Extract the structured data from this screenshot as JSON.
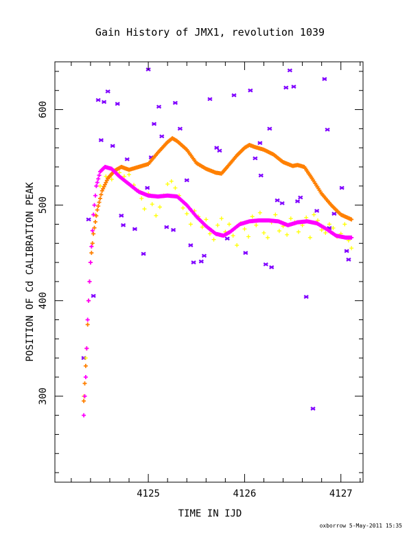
{
  "chart_data": {
    "type": "scatter",
    "title": "Gain History of JMX1, revolution 1039",
    "xlabel": "TIME IN IJD",
    "ylabel": "POSITION OF Cd CALIBRATION PEAK",
    "xlim": [
      4124.03,
      4127.23
    ],
    "ylim": [
      210,
      650
    ],
    "x_ticks": [
      4125,
      4126,
      4127
    ],
    "x_tick_labels": [
      "4125",
      "4126",
      "4127"
    ],
    "y_ticks": [
      300,
      400,
      500,
      600
    ],
    "y_tick_labels": [
      "300",
      "400",
      "500",
      "600"
    ],
    "grid": false,
    "footer_note": "oxborrow  5-May-2011 15:35",
    "colors": {
      "purple_markers": "#8000ff",
      "yellow_markers": "#ffff00",
      "orange_curve": "#ff8000",
      "magenta_curve": "#ff00ff",
      "axes": "#000000"
    },
    "series": [
      {
        "marker": "x",
        "color": "#8000ff",
        "points": [
          [
            4124.33,
            340
          ],
          [
            4124.38,
            485
          ],
          [
            4124.43,
            405
          ],
          [
            4124.48,
            610
          ],
          [
            4124.51,
            568
          ],
          [
            4124.58,
            619
          ],
          [
            4124.63,
            562
          ],
          [
            4124.68,
            606
          ],
          [
            4124.72,
            489
          ],
          [
            4124.74,
            479
          ],
          [
            4124.78,
            548
          ],
          [
            4124.86,
            475
          ],
          [
            4124.95,
            449
          ],
          [
            4124.99,
            518
          ],
          [
            4125.03,
            550
          ],
          [
            4125.06,
            585
          ],
          [
            4125.11,
            603
          ],
          [
            4125.14,
            572
          ],
          [
            4125.19,
            477
          ],
          [
            4125.26,
            474
          ],
          [
            4125.28,
            607
          ],
          [
            4125.33,
            580
          ],
          [
            4125.4,
            526
          ],
          [
            4125.44,
            458
          ],
          [
            4125.47,
            440
          ],
          [
            4125.55,
            441
          ],
          [
            4125.58,
            447
          ],
          [
            4125.64,
            611
          ],
          [
            4125.71,
            560
          ],
          [
            4125.74,
            557
          ],
          [
            4125.82,
            465
          ],
          [
            4125.89,
            615
          ],
          [
            4126.01,
            450
          ],
          [
            4126.06,
            620
          ],
          [
            4126.11,
            549
          ],
          [
            4126.16,
            565
          ],
          [
            4126.17,
            531
          ],
          [
            4126.22,
            438
          ],
          [
            4126.26,
            580
          ],
          [
            4126.28,
            435
          ],
          [
            4126.34,
            505
          ],
          [
            4126.39,
            502
          ],
          [
            4126.43,
            623
          ],
          [
            4126.47,
            641
          ],
          [
            4126.51,
            624
          ],
          [
            4126.55,
            504
          ],
          [
            4126.58,
            508
          ],
          [
            4126.64,
            404
          ],
          [
            4126.71,
            287
          ],
          [
            4126.75,
            494
          ],
          [
            4126.83,
            632
          ],
          [
            4126.86,
            579
          ],
          [
            4126.88,
            476
          ],
          [
            4126.93,
            491
          ],
          [
            4127.01,
            518
          ],
          [
            4127.06,
            452
          ],
          [
            4127.08,
            443
          ],
          [
            4125.0,
            642
          ],
          [
            4124.54,
            608
          ]
        ]
      },
      {
        "marker": "+",
        "color": "#ffff00",
        "points": [
          [
            4124.33,
            300
          ],
          [
            4124.35,
            340
          ],
          [
            4124.37,
            380
          ],
          [
            4124.39,
            420
          ],
          [
            4124.42,
            460
          ],
          [
            4124.45,
            490
          ],
          [
            4124.5,
            520
          ],
          [
            4124.56,
            530
          ],
          [
            4124.62,
            527
          ],
          [
            4124.7,
            534
          ],
          [
            4124.75,
            530
          ],
          [
            4124.8,
            532
          ],
          [
            4124.85,
            521
          ],
          [
            4124.9,
            515
          ],
          [
            4124.93,
            507
          ],
          [
            4124.96,
            496
          ],
          [
            4125.0,
            512
          ],
          [
            4125.04,
            501
          ],
          [
            4125.08,
            489
          ],
          [
            4125.12,
            498
          ],
          [
            4125.16,
            510
          ],
          [
            4125.2,
            522
          ],
          [
            4125.24,
            525
          ],
          [
            4125.28,
            518
          ],
          [
            4125.32,
            510
          ],
          [
            4125.36,
            497
          ],
          [
            4125.4,
            491
          ],
          [
            4125.44,
            480
          ],
          [
            4125.48,
            494
          ],
          [
            4125.52,
            488
          ],
          [
            4125.56,
            477
          ],
          [
            4125.6,
            485
          ],
          [
            4125.64,
            470
          ],
          [
            4125.68,
            464
          ],
          [
            4125.72,
            479
          ],
          [
            4125.76,
            486
          ],
          [
            4125.8,
            472
          ],
          [
            4125.84,
            480
          ],
          [
            4125.88,
            468
          ],
          [
            4125.92,
            458
          ],
          [
            4125.96,
            481
          ],
          [
            4126.0,
            475
          ],
          [
            4126.04,
            467
          ],
          [
            4126.08,
            488
          ],
          [
            4126.12,
            479
          ],
          [
            4126.16,
            492
          ],
          [
            4126.2,
            471
          ],
          [
            4126.24,
            466
          ],
          [
            4126.28,
            482
          ],
          [
            4126.32,
            490
          ],
          [
            4126.36,
            473
          ],
          [
            4126.4,
            478
          ],
          [
            4126.44,
            469
          ],
          [
            4126.48,
            486
          ],
          [
            4126.52,
            482
          ],
          [
            4126.56,
            472
          ],
          [
            4126.6,
            479
          ],
          [
            4126.64,
            487
          ],
          [
            4126.68,
            466
          ],
          [
            4126.72,
            490
          ],
          [
            4126.76,
            484
          ],
          [
            4126.8,
            474
          ],
          [
            4126.84,
            471
          ],
          [
            4126.88,
            480
          ],
          [
            4126.92,
            476
          ],
          [
            4126.96,
            467
          ],
          [
            4127.0,
            470
          ],
          [
            4127.04,
            480
          ],
          [
            4127.08,
            463
          ],
          [
            4127.11,
            455
          ]
        ]
      },
      {
        "marker": "curve",
        "color": "#ff8000",
        "points": [
          [
            4124.33,
            295
          ],
          [
            4124.36,
            350
          ],
          [
            4124.38,
            400
          ],
          [
            4124.4,
            440
          ],
          [
            4124.43,
            470
          ],
          [
            4124.47,
            495
          ],
          [
            4124.52,
            515
          ],
          [
            4124.58,
            528
          ],
          [
            4124.65,
            536
          ],
          [
            4124.72,
            540
          ],
          [
            4124.8,
            537
          ],
          [
            4124.9,
            540
          ],
          [
            4125.0,
            543
          ],
          [
            4125.1,
            555
          ],
          [
            4125.2,
            566
          ],
          [
            4125.25,
            570
          ],
          [
            4125.3,
            567
          ],
          [
            4125.4,
            558
          ],
          [
            4125.5,
            544
          ],
          [
            4125.6,
            538
          ],
          [
            4125.7,
            534
          ],
          [
            4125.76,
            533
          ],
          [
            4125.82,
            540
          ],
          [
            4125.92,
            552
          ],
          [
            4126.0,
            560
          ],
          [
            4126.05,
            563
          ],
          [
            4126.1,
            561
          ],
          [
            4126.2,
            558
          ],
          [
            4126.3,
            553
          ],
          [
            4126.4,
            545
          ],
          [
            4126.5,
            541
          ],
          [
            4126.55,
            542
          ],
          [
            4126.62,
            540
          ],
          [
            4126.7,
            528
          ],
          [
            4126.8,
            512
          ],
          [
            4126.9,
            500
          ],
          [
            4127.0,
            490
          ],
          [
            4127.11,
            485
          ]
        ]
      },
      {
        "marker": "curve",
        "color": "#ff00ff",
        "points": [
          [
            4124.33,
            280
          ],
          [
            4124.35,
            320
          ],
          [
            4124.37,
            380
          ],
          [
            4124.4,
            440
          ],
          [
            4124.43,
            490
          ],
          [
            4124.46,
            520
          ],
          [
            4124.5,
            535
          ],
          [
            4124.55,
            540
          ],
          [
            4124.62,
            538
          ],
          [
            4124.7,
            530
          ],
          [
            4124.8,
            522
          ],
          [
            4124.9,
            514
          ],
          [
            4125.0,
            510
          ],
          [
            4125.1,
            509
          ],
          [
            4125.2,
            510
          ],
          [
            4125.3,
            509
          ],
          [
            4125.4,
            500
          ],
          [
            4125.5,
            488
          ],
          [
            4125.6,
            478
          ],
          [
            4125.7,
            470
          ],
          [
            4125.78,
            468
          ],
          [
            4125.85,
            472
          ],
          [
            4125.95,
            480
          ],
          [
            4126.05,
            483
          ],
          [
            4126.15,
            484
          ],
          [
            4126.25,
            484
          ],
          [
            4126.35,
            483
          ],
          [
            4126.45,
            479
          ],
          [
            4126.55,
            482
          ],
          [
            4126.65,
            483
          ],
          [
            4126.75,
            481
          ],
          [
            4126.85,
            475
          ],
          [
            4126.95,
            468
          ],
          [
            4127.05,
            466
          ],
          [
            4127.11,
            466
          ]
        ]
      }
    ]
  }
}
